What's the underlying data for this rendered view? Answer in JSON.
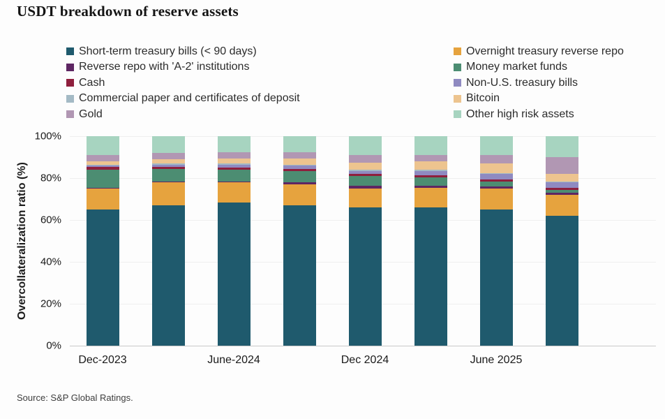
{
  "title": "USDT breakdown of reserve assets",
  "source": "Source: S&P Global Ratings.",
  "chart_data": {
    "type": "bar",
    "stacked": true,
    "stacked_100_percent": true,
    "n_bars": 8,
    "ylabel": "Overcollateralization ratio (%)",
    "ylim": [
      0,
      100
    ],
    "yticks": [
      "0%",
      "20%",
      "40%",
      "60%",
      "80%",
      "100%"
    ],
    "grid": "faint horizontal",
    "legend_position": "top, two columns",
    "x_ticks": [
      {
        "bar_index": 0,
        "label": "Dec-2023"
      },
      {
        "bar_index": 2,
        "label": "June-2024"
      },
      {
        "bar_index": 4,
        "label": "Dec 2024"
      },
      {
        "bar_index": 6,
        "label": "June 2025"
      }
    ],
    "series": [
      {
        "name": "Short-term treasury bills (< 90 days)",
        "color": "#1f5a6d",
        "values": [
          65,
          67,
          68.5,
          67,
          66,
          66,
          65,
          62
        ]
      },
      {
        "name": "Overnight treasury reverse repo",
        "color": "#e6a33e",
        "values": [
          10,
          11,
          9.5,
          10,
          9,
          9.5,
          10,
          10
        ]
      },
      {
        "name": "Reverse repo with 'A-2' institutions",
        "color": "#5e2663",
        "values": [
          0.5,
          0.5,
          0.5,
          1,
          1.5,
          1,
          1,
          1
        ]
      },
      {
        "name": "Money market funds",
        "color": "#4c8d72",
        "values": [
          8.5,
          6,
          5.5,
          5.5,
          4.5,
          4,
          2.5,
          1.5
        ]
      },
      {
        "name": "Cash",
        "color": "#8f1f3d",
        "values": [
          1.5,
          1,
          1,
          1,
          1,
          1,
          1,
          1
        ]
      },
      {
        "name": "Non-U.S. treasury bills",
        "color": "#8f8ac1",
        "values": [
          0.5,
          1,
          1.5,
          1.5,
          1.5,
          2,
          2.5,
          2.5
        ]
      },
      {
        "name": "Commercial paper and certificates of deposit",
        "color": "#a4bac5",
        "values": [
          0.5,
          0.5,
          0.5,
          0.5,
          0.5,
          0.5,
          0.5,
          0.5
        ]
      },
      {
        "name": "Bitcoin",
        "color": "#edc48f",
        "values": [
          1.5,
          2,
          2.5,
          3,
          3.5,
          4,
          4.5,
          3.5
        ]
      },
      {
        "name": "Gold",
        "color": "#b197b3",
        "values": [
          3,
          3,
          3,
          3,
          3.5,
          3,
          4,
          8
        ]
      },
      {
        "name": "Other high risk assets",
        "color": "#a7d4c0",
        "values": [
          9,
          8,
          7.5,
          7.5,
          9,
          9,
          9,
          10
        ]
      }
    ]
  }
}
